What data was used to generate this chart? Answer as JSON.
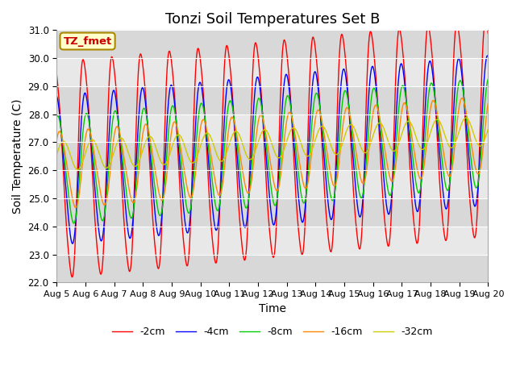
{
  "title": "Tonzi Soil Temperatures Set B",
  "xlabel": "Time",
  "ylabel": "Soil Temperature (C)",
  "ylim": [
    22.0,
    31.0
  ],
  "xlim": [
    0,
    15
  ],
  "annotation": "TZ_fmet",
  "yticks": [
    22.0,
    23.0,
    24.0,
    25.0,
    26.0,
    27.0,
    28.0,
    29.0,
    30.0,
    31.0
  ],
  "xtick_labels": [
    "Aug 5",
    "Aug 6",
    "Aug 7",
    "Aug 8",
    "Aug 9",
    "Aug 10",
    "Aug 11",
    "Aug 12",
    "Aug 13",
    "Aug 14",
    "Aug 15",
    "Aug 16",
    "Aug 17",
    "Aug 18",
    "Aug 19",
    "Aug 20"
  ],
  "colors": {
    "-2cm": "#ff0000",
    "-4cm": "#0000ff",
    "-8cm": "#00cc00",
    "-16cm": "#ff8800",
    "-32cm": "#cccc00"
  },
  "legend_labels": [
    "-2cm",
    "-4cm",
    "-8cm",
    "-16cm",
    "-32cm"
  ],
  "plot_bg_color": "#e8e8e8",
  "title_fontsize": 13,
  "axis_label_fontsize": 10,
  "tick_fontsize": 8.5
}
